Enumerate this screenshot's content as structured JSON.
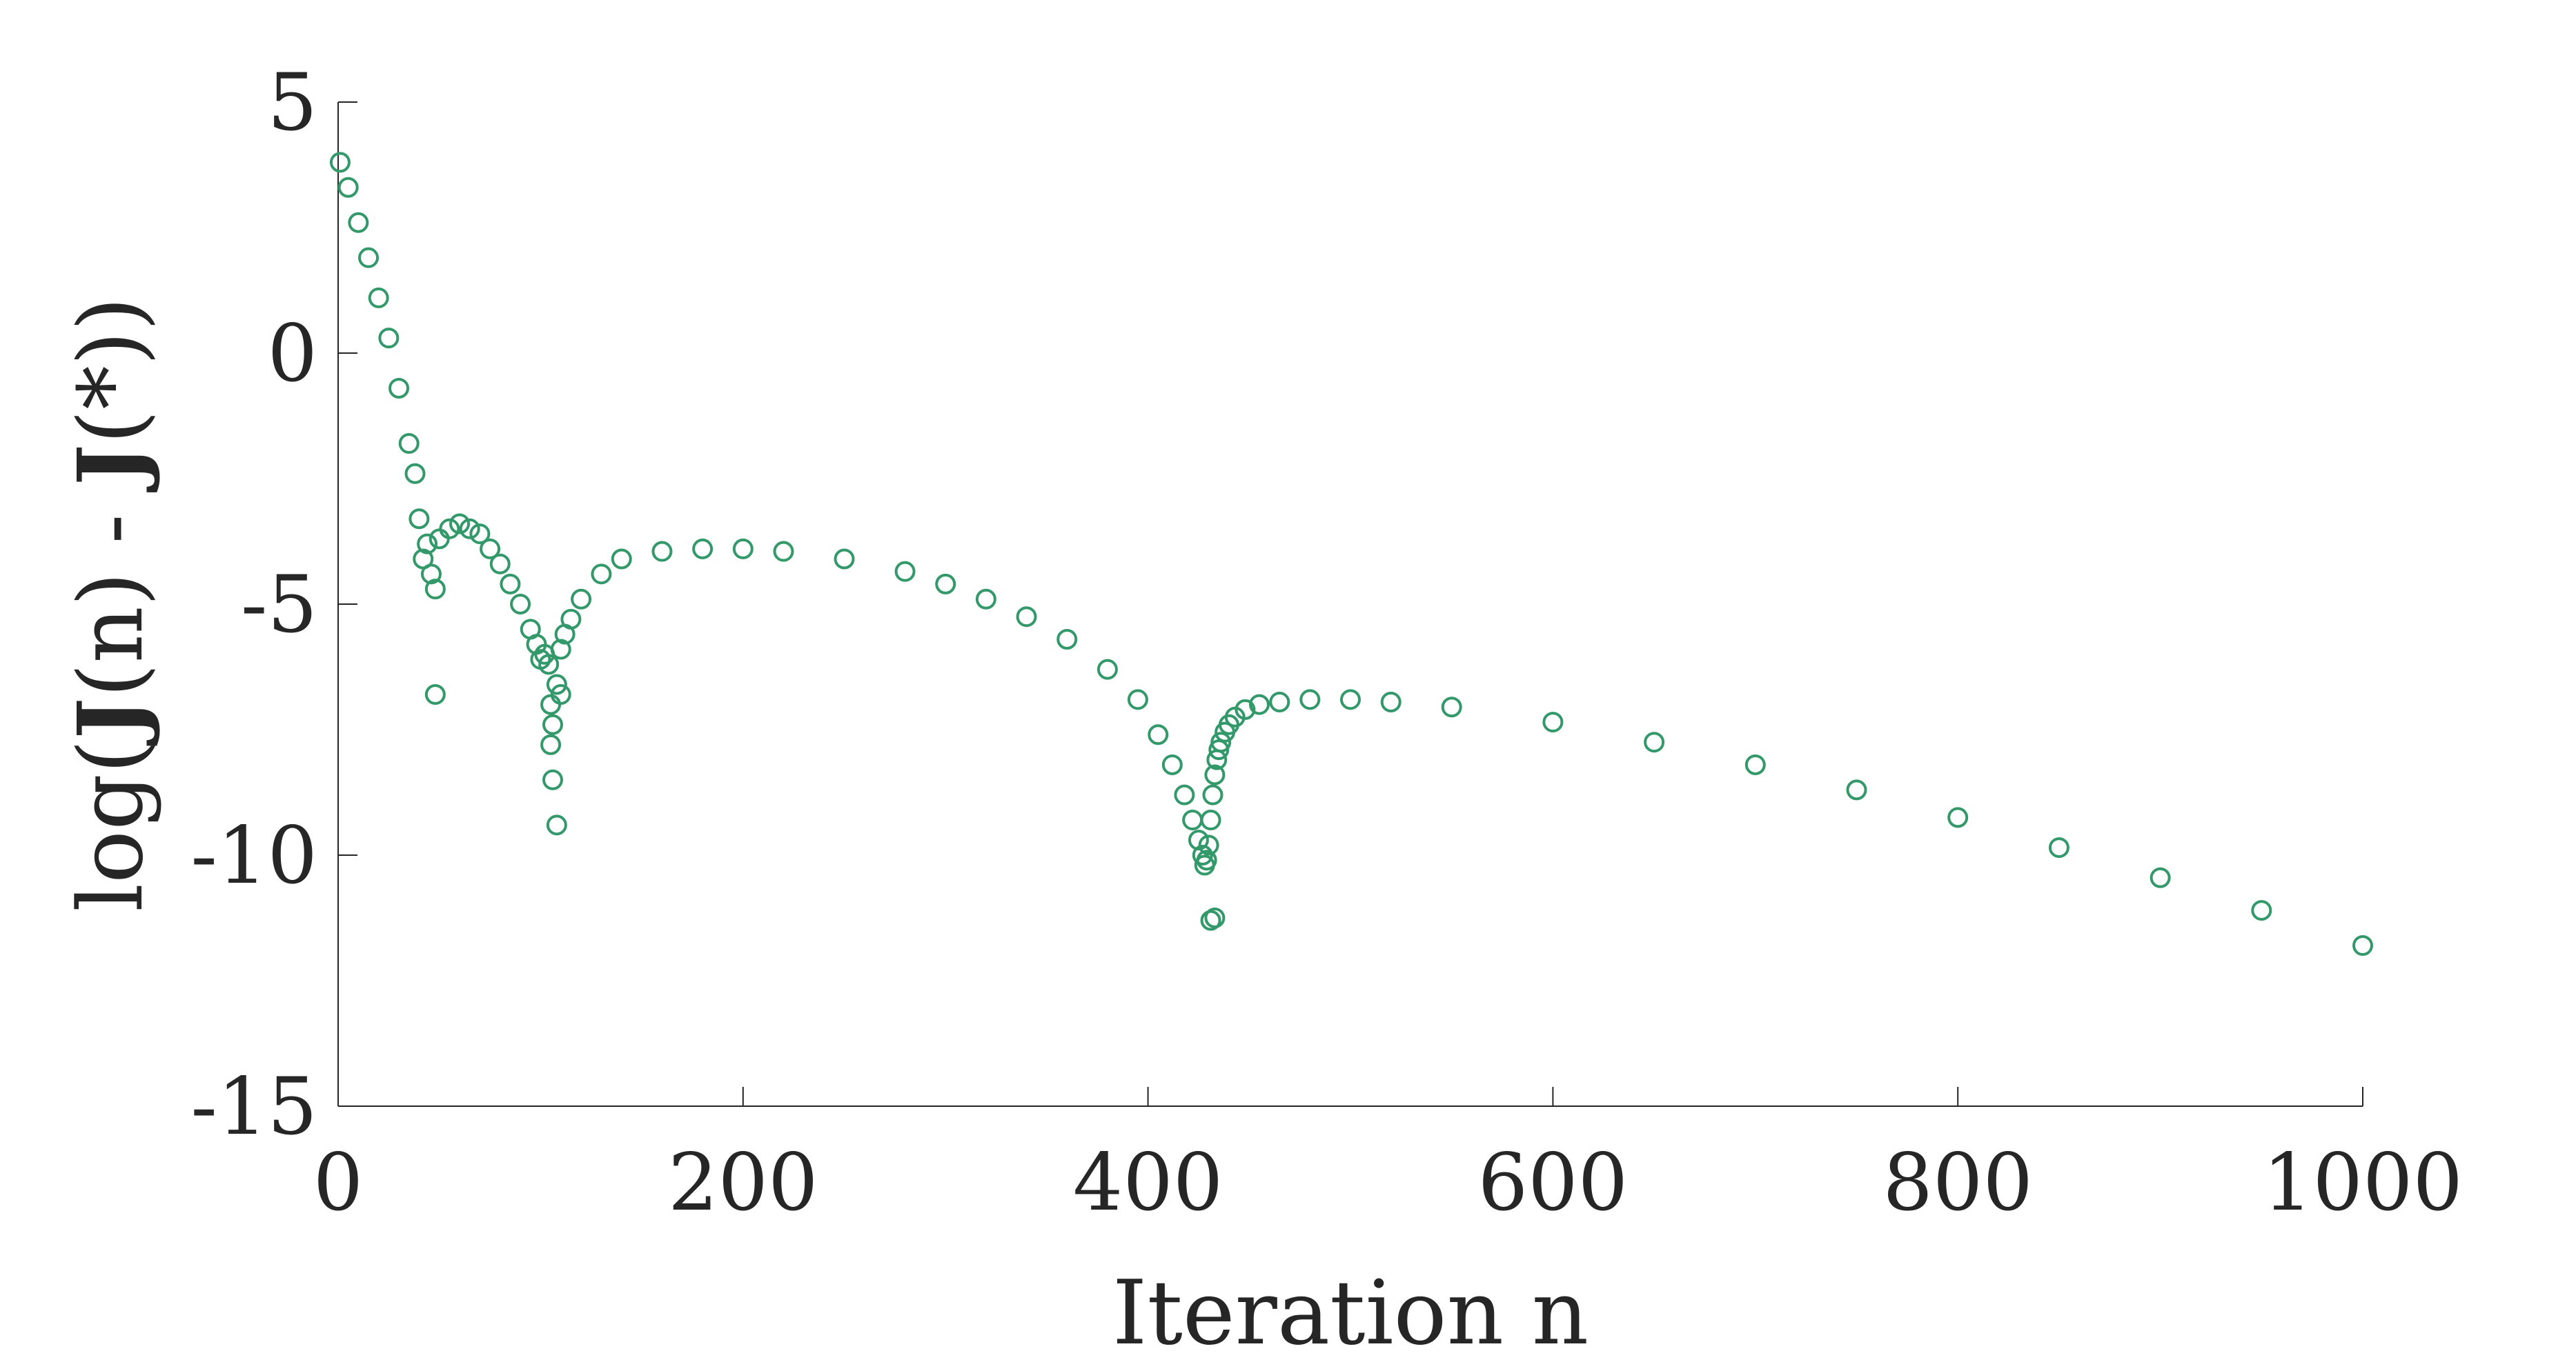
{
  "chart_data": {
    "type": "scatter",
    "xlabel": "Iteration n",
    "ylabel": "log(J(n) - J(*))",
    "ylabel_parts": [
      "log(",
      "J",
      "(n) - ",
      "J",
      "(*))"
    ],
    "xlim": [
      0,
      1000
    ],
    "ylim": [
      -15,
      5
    ],
    "xticks": [
      0,
      200,
      400,
      600,
      800,
      1000
    ],
    "xtick_labels": [
      "0",
      "200",
      "400",
      "600",
      "800",
      "1000"
    ],
    "yticks": [
      5,
      0,
      -5,
      -10,
      -15
    ],
    "ytick_labels": [
      "5",
      "0",
      "-5",
      "-10",
      "-15"
    ],
    "grid": false,
    "marker": "open-circle",
    "color": "#33996a",
    "series": [
      {
        "x": [
          1,
          5,
          10,
          15,
          20,
          25,
          30,
          35,
          38,
          40,
          42,
          44,
          46,
          48,
          50,
          55,
          60,
          65,
          70,
          75,
          80,
          85,
          90,
          95,
          98,
          100,
          102,
          104,
          105,
          106,
          108,
          110,
          112,
          115,
          120,
          130,
          140,
          160,
          180,
          200,
          220,
          250,
          280,
          300,
          320,
          340,
          360,
          380,
          395,
          405,
          412,
          418,
          422,
          425,
          427,
          428,
          429,
          430,
          431,
          432,
          433,
          434,
          435,
          436,
          438,
          440,
          443,
          448,
          455,
          465,
          480,
          500,
          520,
          550,
          600,
          650,
          700,
          750,
          800,
          850,
          900,
          950,
          1000,
          48,
          105,
          106,
          108,
          110,
          431,
          433
        ],
        "y": [
          3.8,
          3.3,
          2.6,
          1.9,
          1.1,
          0.3,
          -0.7,
          -1.8,
          -2.4,
          -3.3,
          -4.1,
          -3.8,
          -4.4,
          -4.7,
          -3.7,
          -3.5,
          -3.4,
          -3.5,
          -3.6,
          -3.9,
          -4.2,
          -4.6,
          -5.0,
          -5.5,
          -5.8,
          -6.1,
          -6.0,
          -6.2,
          -7.0,
          -7.4,
          -6.6,
          -5.9,
          -5.6,
          -5.3,
          -4.9,
          -4.4,
          -4.1,
          -3.95,
          -3.9,
          -3.9,
          -3.95,
          -4.1,
          -4.35,
          -4.6,
          -4.9,
          -5.25,
          -5.7,
          -6.3,
          -6.9,
          -7.6,
          -8.2,
          -8.8,
          -9.3,
          -9.7,
          -10.0,
          -10.2,
          -10.1,
          -9.8,
          -9.3,
          -8.8,
          -8.4,
          -8.1,
          -7.9,
          -7.75,
          -7.55,
          -7.4,
          -7.25,
          -7.1,
          -7.0,
          -6.95,
          -6.9,
          -6.9,
          -6.95,
          -7.05,
          -7.35,
          -7.75,
          -8.2,
          -8.7,
          -9.25,
          -9.85,
          -10.45,
          -11.1,
          -11.8,
          -6.8,
          -7.8,
          -8.5,
          -9.4,
          -6.8,
          -11.3,
          -11.25
        ]
      }
    ]
  }
}
